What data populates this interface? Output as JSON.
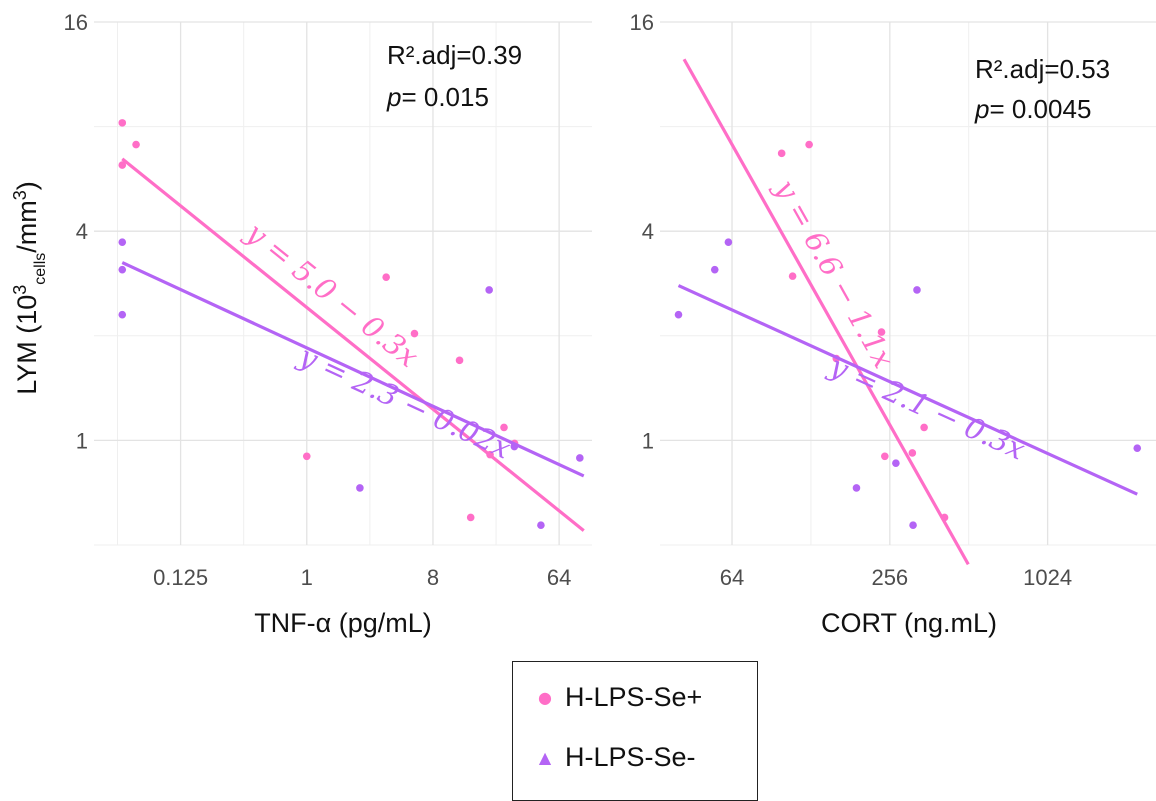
{
  "colors": {
    "se_plus": "#FF6EC7",
    "se_minus": "#B464F5",
    "grid": "#e6e6e6"
  },
  "y_axis": {
    "label_main": "LYM (10",
    "label_sup1": "3",
    "label_sub": "cells",
    "label_mid": "/mm",
    "label_sup2": "3",
    "label_end": ")"
  },
  "legend": {
    "items": [
      {
        "label": "H-LPS-Se+",
        "symbol": "●",
        "color": "#FF6EC7"
      },
      {
        "label": "H-LPS-Se-",
        "symbol": "▲",
        "color": "#B464F5"
      }
    ]
  },
  "chart_data": [
    {
      "type": "scatter",
      "scale": {
        "x": "log2",
        "y": "log2"
      },
      "xlabel": "TNF-α (pg/mL)",
      "xlim": [
        0.03,
        110
      ],
      "ylim": [
        0.5,
        16
      ],
      "x_ticks": [
        {
          "v": 0.125,
          "label": "0.125"
        },
        {
          "v": 1,
          "label": "1"
        },
        {
          "v": 8,
          "label": "8"
        },
        {
          "v": 64,
          "label": "64"
        }
      ],
      "y_ticks": [
        {
          "v": 1,
          "label": "1"
        },
        {
          "v": 4,
          "label": "4"
        },
        {
          "v": 16,
          "label": "16"
        }
      ],
      "annotation": {
        "line1": "R².adj=0.39",
        "p_label": "p",
        "p_value": "= 0.015"
      },
      "series": [
        {
          "name": "H-LPS-Se+",
          "color": "#FF6EC7",
          "points": [
            [
              0.0478,
              8.2
            ],
            [
              0.06,
              7.1
            ],
            [
              0.0478,
              6.2
            ],
            [
              3.7,
              2.95
            ],
            [
              5.9,
              2.03
            ],
            [
              12.4,
              1.7
            ],
            [
              25.8,
              1.09
            ],
            [
              30.7,
              0.98
            ],
            [
              20.5,
              0.91
            ],
            [
              1.0,
              0.9
            ],
            [
              14.9,
              0.6
            ]
          ],
          "fit": {
            "label": "y = 5.0 − 0.3x",
            "x": [
              0.0478,
              96
            ],
            "y": [
              6.46,
              0.55
            ]
          }
        },
        {
          "name": "H-LPS-Se-",
          "color": "#B464F5",
          "points": [
            [
              0.0478,
              3.72
            ],
            [
              0.0478,
              3.1
            ],
            [
              0.0478,
              2.3
            ],
            [
              20.2,
              2.71
            ],
            [
              2.4,
              0.73
            ],
            [
              30.6,
              0.96
            ],
            [
              47.4,
              0.57
            ],
            [
              90,
              0.89
            ]
          ],
          "fit": {
            "label": "y = 2.3 − 0.02x",
            "x": [
              0.0478,
              96
            ],
            "y": [
              3.25,
              0.79
            ]
          }
        }
      ]
    },
    {
      "type": "scatter",
      "scale": {
        "x": "log2",
        "y": "log2"
      },
      "xlabel": "CORT (ng.mL)",
      "xlim": [
        34,
        2700
      ],
      "ylim": [
        0.5,
        16
      ],
      "x_ticks": [
        {
          "v": 64,
          "label": "64"
        },
        {
          "v": 256,
          "label": "256"
        },
        {
          "v": 1024,
          "label": "1024"
        }
      ],
      "y_ticks": [
        {
          "v": 1,
          "label": "1"
        },
        {
          "v": 4,
          "label": "4"
        },
        {
          "v": 16,
          "label": "16"
        }
      ],
      "annotation": {
        "line1": "R².adj=0.53",
        "p_label": "p",
        "p_value": "= 0.0045"
      },
      "series": [
        {
          "name": "H-LPS-Se+",
          "color": "#FF6EC7",
          "points": [
            [
              99,
              6.7
            ],
            [
              126,
              7.1
            ],
            [
              109,
              2.97
            ],
            [
              160,
              1.72
            ],
            [
              238,
              2.05
            ],
            [
              245,
              0.9
            ],
            [
              312,
              0.92
            ],
            [
              346,
              1.09
            ],
            [
              414,
              0.6
            ]
          ],
          "fit": {
            "label": "y = 6.6 − 1.1x",
            "x": [
              42,
              510
            ],
            "y": [
              12.5,
              0.44
            ]
          }
        },
        {
          "name": "H-LPS-Se-",
          "color": "#B464F5",
          "points": [
            [
              40,
              2.3
            ],
            [
              55,
              3.1
            ],
            [
              62,
              3.72
            ],
            [
              191,
              0.73
            ],
            [
              270,
              0.86
            ],
            [
              325,
              2.71
            ],
            [
              314,
              0.57
            ],
            [
              2250,
              0.95
            ]
          ],
          "fit": {
            "label": "y = 2.1 − 0.3x",
            "x": [
              40,
              2250
            ],
            "y": [
              2.79,
              0.7
            ]
          }
        }
      ]
    }
  ]
}
